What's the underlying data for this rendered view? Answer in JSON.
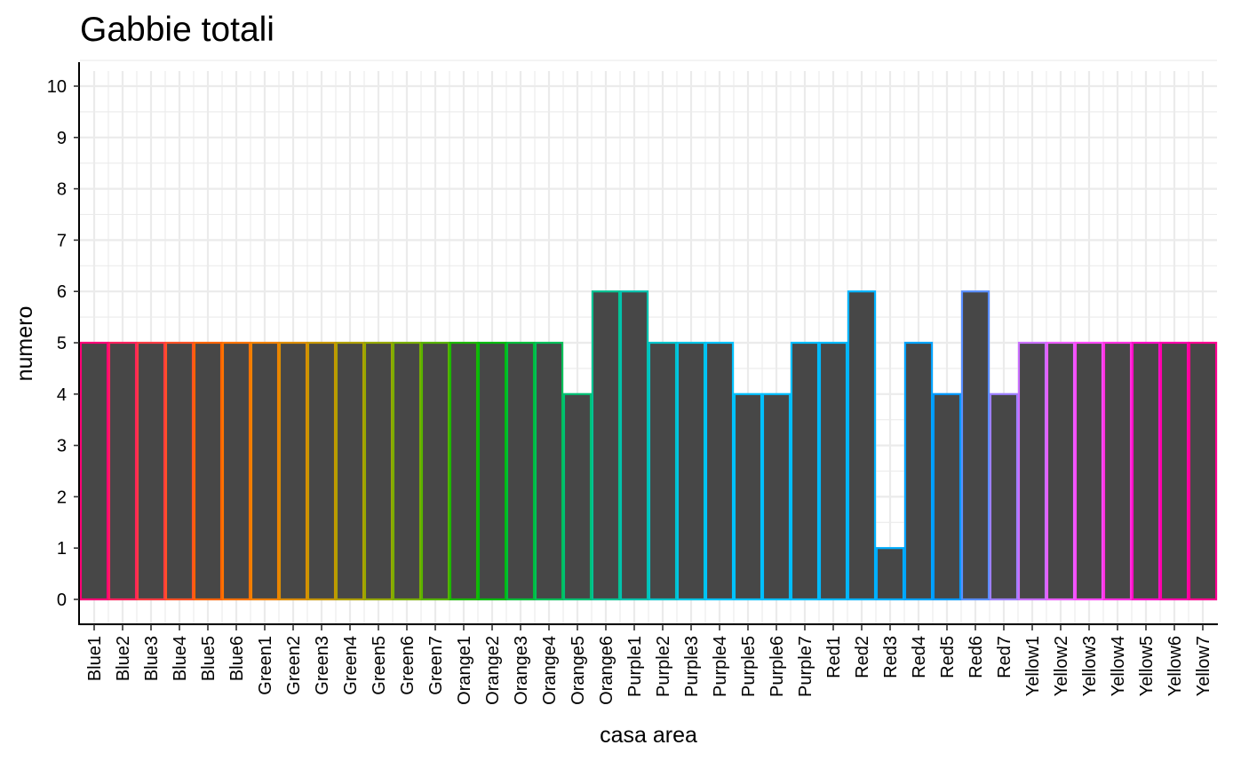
{
  "chart_data": {
    "type": "bar",
    "title": "Gabbie totali",
    "xlabel": "casa area",
    "ylabel": "numero",
    "ylim": [
      0,
      10
    ],
    "yticks": [
      0,
      1,
      2,
      3,
      4,
      5,
      6,
      7,
      8,
      9,
      10
    ],
    "grid": true,
    "legend": "none",
    "fill_color": "#474747",
    "categories": [
      "Blue1",
      "Blue2",
      "Blue3",
      "Blue4",
      "Blue5",
      "Blue6",
      "Green1",
      "Green2",
      "Green3",
      "Green4",
      "Green5",
      "Green6",
      "Green7",
      "Orange1",
      "Orange2",
      "Orange3",
      "Orange4",
      "Orange5",
      "Orange6",
      "Purple1",
      "Purple2",
      "Purple3",
      "Purple4",
      "Purple5",
      "Purple6",
      "Purple7",
      "Red1",
      "Red2",
      "Red3",
      "Red4",
      "Red5",
      "Red6",
      "Red7",
      "Yellow1",
      "Yellow2",
      "Yellow3",
      "Yellow4",
      "Yellow5",
      "Yellow6",
      "Yellow7"
    ],
    "values": [
      5,
      5,
      5,
      5,
      5,
      5,
      5,
      5,
      5,
      5,
      5,
      5,
      5,
      5,
      5,
      5,
      5,
      4,
      6,
      6,
      5,
      5,
      5,
      4,
      4,
      5,
      5,
      6,
      1,
      5,
      4,
      6,
      4,
      5,
      5,
      5,
      5,
      5,
      5,
      5
    ]
  }
}
